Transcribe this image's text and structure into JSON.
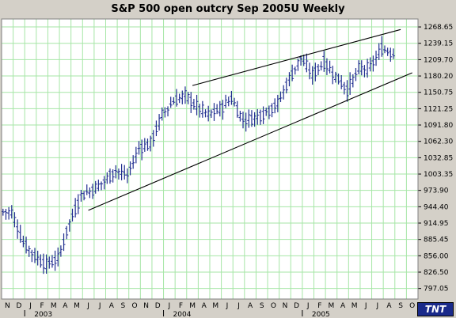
{
  "colors": {
    "plot_background": "#ffffff",
    "grid": "#a6e6a6",
    "bars": "#1f2d8f",
    "trendline": "#000000",
    "frame": "#d4d0c8"
  },
  "logo_text": "TNT",
  "chart_data": {
    "type": "ohlc",
    "title": "S&P 500 open outcry Sep 2005U Weekly",
    "y_ticks": [
      "1268.65",
      "1239.15",
      "1209.70",
      "1180.20",
      "1150.75",
      "1121.25",
      "1091.80",
      "1062.30",
      "1032.85",
      "1003.35",
      "973.90",
      "944.40",
      "914.95",
      "885.45",
      "856.00",
      "826.50",
      "797.05"
    ],
    "ylim": [
      778,
      1283
    ],
    "x_month_labels": [
      "N",
      "D",
      "J",
      "F",
      "M",
      "A",
      "M",
      "J",
      "J",
      "A",
      "S",
      "O",
      "N",
      "D",
      "J",
      "F",
      "M",
      "A",
      "M",
      "J",
      "J",
      "A",
      "S",
      "O",
      "N",
      "D",
      "J",
      "F",
      "M",
      "A",
      "M",
      "J",
      "J",
      "A",
      "S",
      "O"
    ],
    "x_year_labels": [
      {
        "label": "2003",
        "month_index": 2
      },
      {
        "label": "2004",
        "month_index": 14
      },
      {
        "label": "2005",
        "month_index": 26
      }
    ],
    "monthly_closes": [
      {
        "month": "Nov 2002",
        "close": 935
      },
      {
        "month": "Dec 2002",
        "close": 880
      },
      {
        "month": "Jan 2003",
        "close": 855
      },
      {
        "month": "Feb 2003",
        "close": 840
      },
      {
        "month": "Mar 2003",
        "close": 850
      },
      {
        "month": "Apr 2003",
        "close": 915
      },
      {
        "month": "May 2003",
        "close": 965
      },
      {
        "month": "Jun 2003",
        "close": 975
      },
      {
        "month": "Jul 2003",
        "close": 990
      },
      {
        "month": "Aug 2003",
        "close": 1010
      },
      {
        "month": "Sep 2003",
        "close": 1000
      },
      {
        "month": "Oct 2003",
        "close": 1050
      },
      {
        "month": "Nov 2003",
        "close": 1058
      },
      {
        "month": "Dec 2003",
        "close": 1110
      },
      {
        "month": "Jan 2004",
        "close": 1135
      },
      {
        "month": "Feb 2004",
        "close": 1145
      },
      {
        "month": "Mar 2004",
        "close": 1125
      },
      {
        "month": "Apr 2004",
        "close": 1110
      },
      {
        "month": "May 2004",
        "close": 1120
      },
      {
        "month": "Jun 2004",
        "close": 1140
      },
      {
        "month": "Jul 2004",
        "close": 1100
      },
      {
        "month": "Aug 2004",
        "close": 1105
      },
      {
        "month": "Sep 2004",
        "close": 1115
      },
      {
        "month": "Oct 2004",
        "close": 1130
      },
      {
        "month": "Nov 2004",
        "close": 1175
      },
      {
        "month": "Dec 2004",
        "close": 1212
      },
      {
        "month": "Jan 2005",
        "close": 1182
      },
      {
        "month": "Feb 2005",
        "close": 1205
      },
      {
        "month": "Mar 2005",
        "close": 1180
      },
      {
        "month": "Apr 2005",
        "close": 1155
      },
      {
        "month": "May 2005",
        "close": 1192
      },
      {
        "month": "Jun 2005",
        "close": 1195
      },
      {
        "month": "Jul 2005",
        "close": 1230
      },
      {
        "month": "Aug 2005",
        "close": 1220
      }
    ],
    "trendlines": [
      {
        "role": "upper wedge line",
        "start": {
          "month": "Mar 2004",
          "value": 1163
        },
        "end": {
          "month": "Sep 2005",
          "value": 1264
        }
      },
      {
        "role": "lower wedge line",
        "start": {
          "month": "Jun 2003",
          "value": 938
        },
        "end": {
          "month": "Oct 2005",
          "value": 1186
        }
      }
    ],
    "grid": true
  }
}
